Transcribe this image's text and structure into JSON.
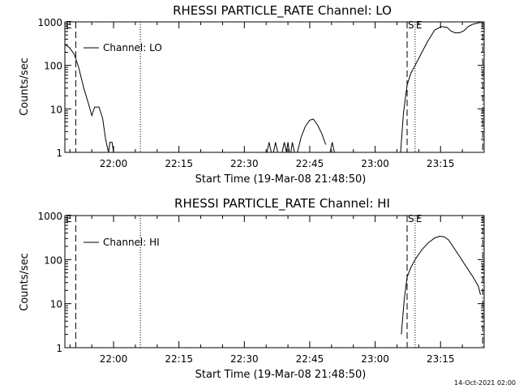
{
  "footer": {
    "date_stamp": "14-Oct-2021 02:00"
  },
  "chart_data": [
    {
      "type": "line",
      "title": "RHESSI PARTICLE_RATE Channel: LO",
      "xlabel": "Start Time (19-Mar-08 21:48:50)",
      "ylabel": "Counts/sec",
      "y_scale": "log",
      "ylim": [
        1,
        1000
      ],
      "xlim": [
        "21:48:50",
        "23:25:00"
      ],
      "x_ticks": [
        "22:00",
        "22:15",
        "22:30",
        "22:45",
        "23:00",
        "23:15"
      ],
      "y_ticks": [
        "1",
        "10",
        "100",
        "1000"
      ],
      "legend": {
        "position": "top-left",
        "entries": [
          "Channel: LO"
        ]
      },
      "markers": [
        {
          "label": "E",
          "time": "21:48:50",
          "style": "dashed"
        },
        {
          "label": "",
          "time": "21:51:20",
          "style": "dashed"
        },
        {
          "label": "",
          "time": "22:06:10",
          "style": "dotted"
        },
        {
          "label": "S",
          "time": "23:07:20",
          "style": "dashed"
        },
        {
          "label": "E",
          "time": "23:09:10",
          "style": "dotted"
        },
        {
          "label": "",
          "time": "23:24:40",
          "style": "dash-dot"
        }
      ],
      "series": [
        {
          "name": "Channel: LO",
          "segments": [
            {
              "x": [
                "21:48:50",
                "21:49:50",
                "21:51:00",
                "21:52:00",
                "21:53:10",
                "21:54:10",
                "21:55:00",
                "21:55:40",
                "21:56:40",
                "21:57:30",
                "21:58:10",
                "21:58:50"
              ],
              "y": [
                300,
                260,
                180,
                90,
                30,
                14,
                7,
                11,
                11,
                6,
                2,
                1
              ]
            },
            {
              "x": [
                "21:58:50",
                "21:59:10",
                "21:59:40",
                "22:00:00"
              ],
              "y": [
                1,
                1.7,
                1.7,
                1
              ]
            },
            {
              "x": [
                "22:35:10",
                "22:35:40",
                "22:36:10"
              ],
              "y": [
                1,
                1.7,
                1
              ]
            },
            {
              "x": [
                "22:36:40",
                "22:37:10",
                "22:37:40"
              ],
              "y": [
                1,
                1.7,
                1
              ]
            },
            {
              "x": [
                "22:38:40",
                "22:39:10",
                "22:39:40",
                "22:40:00",
                "22:40:20"
              ],
              "y": [
                1,
                1.7,
                1,
                1.7,
                1
              ]
            },
            {
              "x": [
                "22:40:40",
                "22:41:00",
                "22:41:30"
              ],
              "y": [
                1,
                1.7,
                1
              ]
            },
            {
              "x": [
                "22:42:10",
                "22:43:00",
                "22:44:00",
                "22:45:00",
                "22:45:50",
                "22:46:50",
                "22:47:50",
                "22:48:40"
              ],
              "y": [
                1,
                2.2,
                4,
                5.5,
                5.8,
                4.2,
                2.6,
                1.5
              ]
            },
            {
              "x": [
                "22:49:40",
                "22:50:10",
                "22:50:40"
              ],
              "y": [
                1,
                1.7,
                1
              ]
            },
            {
              "x": [
                "23:05:50",
                "23:06:30",
                "23:07:20",
                "23:08:10",
                "23:09:10",
                "23:10:30",
                "23:12:00",
                "23:13:40",
                "23:15:10",
                "23:16:30",
                "23:17:20",
                "23:18:20",
                "23:19:20",
                "23:20:20",
                "23:21:20",
                "23:22:20",
                "23:23:50",
                "23:24:50"
              ],
              "y": [
                1,
                8,
                35,
                65,
                100,
                180,
                350,
                650,
                780,
                750,
                620,
                560,
                560,
                620,
                780,
                880,
                960,
                1000
              ]
            }
          ]
        }
      ]
    },
    {
      "type": "line",
      "title": "RHESSI PARTICLE_RATE Channel: HI",
      "xlabel": "Start Time (19-Mar-08 21:48:50)",
      "ylabel": "Counts/sec",
      "y_scale": "log",
      "ylim": [
        1,
        1000
      ],
      "xlim": [
        "21:48:50",
        "23:25:00"
      ],
      "x_ticks": [
        "22:00",
        "22:15",
        "22:30",
        "22:45",
        "23:00",
        "23:15"
      ],
      "y_ticks": [
        "1",
        "10",
        "100",
        "1000"
      ],
      "legend": {
        "position": "top-left",
        "entries": [
          "Channel: HI"
        ]
      },
      "markers": [
        {
          "label": "E",
          "time": "21:48:50",
          "style": "dashed"
        },
        {
          "label": "",
          "time": "21:51:20",
          "style": "dashed"
        },
        {
          "label": "",
          "time": "22:06:10",
          "style": "dotted"
        },
        {
          "label": "S",
          "time": "23:07:20",
          "style": "dashed"
        },
        {
          "label": "E",
          "time": "23:09:10",
          "style": "dotted"
        },
        {
          "label": "",
          "time": "23:24:40",
          "style": "dash-dot"
        }
      ],
      "series": [
        {
          "name": "Channel: HI",
          "segments": [
            {
              "x": [
                "23:06:00",
                "23:06:40",
                "23:07:20",
                "23:08:10",
                "23:09:10",
                "23:10:40",
                "23:12:10",
                "23:13:40",
                "23:14:50",
                "23:15:50",
                "23:16:50",
                "23:17:50",
                "23:19:20",
                "23:20:50",
                "23:22:20",
                "23:23:40",
                "23:24:10"
              ],
              "y": [
                2,
                12,
                40,
                65,
                100,
                165,
                240,
                310,
                340,
                330,
                280,
                200,
                120,
                70,
                42,
                25,
                16
              ]
            }
          ]
        }
      ]
    }
  ]
}
